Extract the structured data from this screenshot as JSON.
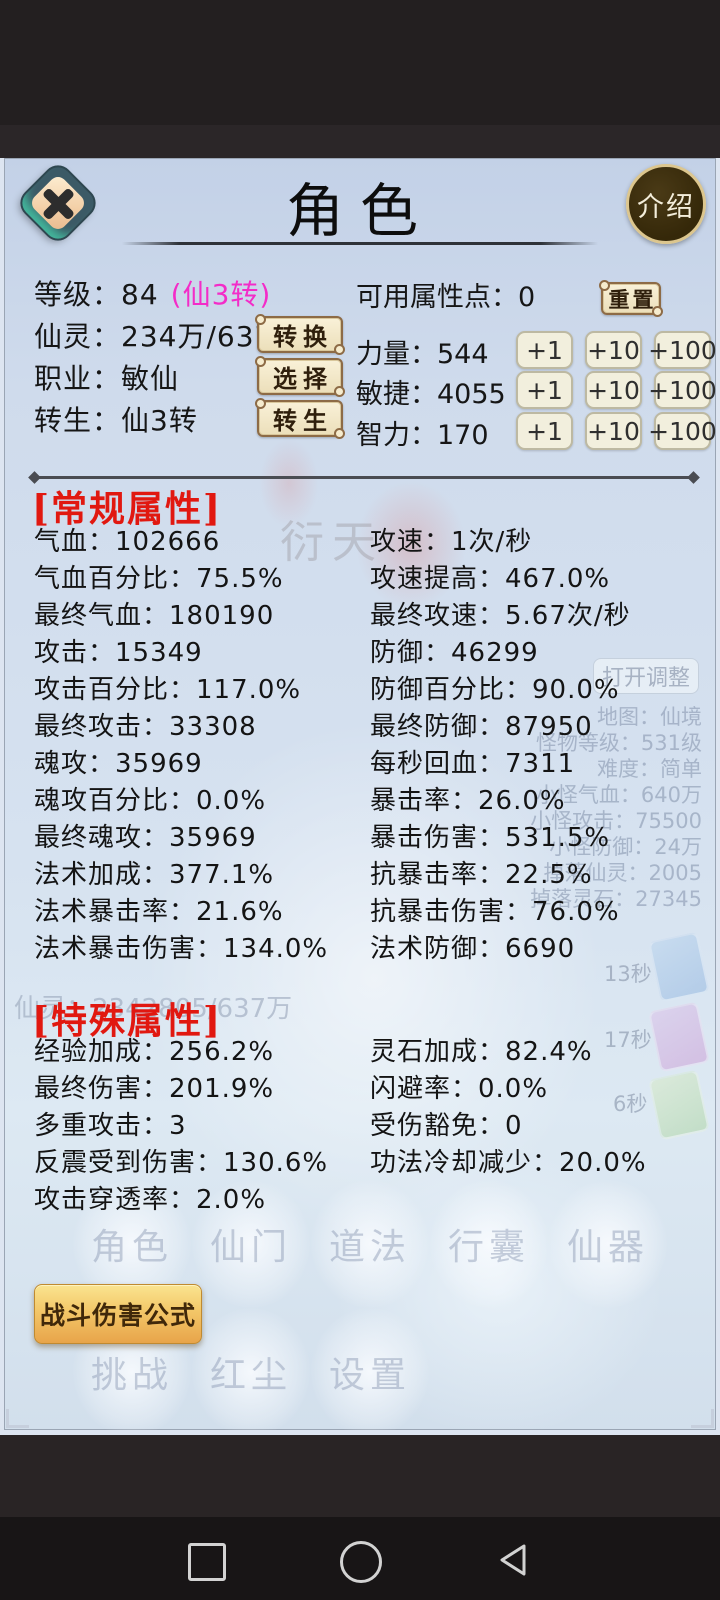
{
  "header": {
    "title": "角色",
    "intro_button": "介绍",
    "close_icon": "x-icon"
  },
  "profile": {
    "rows": [
      {
        "text": "等级：84",
        "suffix": "(仙3转)"
      },
      {
        "text": "仙灵：234万/637万",
        "button": "转换"
      },
      {
        "text": "职业：敏仙",
        "button": "选择"
      },
      {
        "text": "转生：仙3转",
        "button": "转生"
      }
    ],
    "points_text": "可用属性点：0",
    "reset_button": "重置",
    "attributes": [
      "力量：544",
      "敏捷：4055",
      "智力：170"
    ],
    "add_buttons": [
      "+1",
      "+10",
      "+100"
    ]
  },
  "sections": [
    {
      "title": "[常规属性]",
      "left": [
        "气血：102666",
        "气血百分比：75.5%",
        "最终气血：180190",
        "攻击：15349",
        "攻击百分比：117.0%",
        "最终攻击：33308",
        "魂攻：35969",
        "魂攻百分比：0.0%",
        "最终魂攻：35969",
        "法术加成：377.1%",
        "法术暴击率：21.6%",
        "法术暴击伤害：134.0%"
      ],
      "right": [
        "攻速：1次/秒",
        "攻速提高：467.0%",
        "最终攻速：5.67次/秒",
        "防御：46299",
        "防御百分比：90.0%",
        "最终防御：87950",
        "每秒回血：7311",
        "暴击率：26.0%",
        "暴击伤害：531.5%",
        "抗暴击率：22.5%",
        "抗暴击伤害：76.0%",
        "法术防御：6690"
      ]
    },
    {
      "title": "[特殊属性]",
      "left": [
        "经验加成：256.2%",
        "最终伤害：201.9%",
        "多重攻击：3",
        "反震受到伤害：130.6%",
        "攻击穿透率：2.0%"
      ],
      "right": [
        "灵石加成：82.4%",
        "闪避率：0.0%",
        "受伤豁免：0",
        "功法冷却减少：20.0%"
      ]
    }
  ],
  "formula_button": "战斗伤害公式",
  "background": {
    "watermark": "衍天",
    "faded_button": "打开调整",
    "faded_info": [
      "地图：仙境",
      "怪物等级：531级",
      "难度：简单",
      "小怪气血：640万",
      "小怪攻击：75500",
      "小怪防御：24万",
      "掉落仙灵：2005",
      "掉落灵石：27345"
    ],
    "faded_left": "仙灵：2342805/637万",
    "timers": [
      "13秒",
      "17秒",
      "6秒"
    ],
    "tabs_row1": [
      "角色",
      "仙门",
      "道法",
      "行囊",
      "仙器"
    ],
    "tabs_row2": [
      "挑战",
      "红尘",
      "设置"
    ]
  },
  "nav_bar": {
    "icons": [
      "square",
      "circle",
      "triangle-left"
    ]
  },
  "colors": {
    "accent_red": "#e11810",
    "magenta": "#f32cc8",
    "gold_button": "#f3c768",
    "panel_bg": "#d2deee",
    "button_cream": "#f2efdd"
  }
}
